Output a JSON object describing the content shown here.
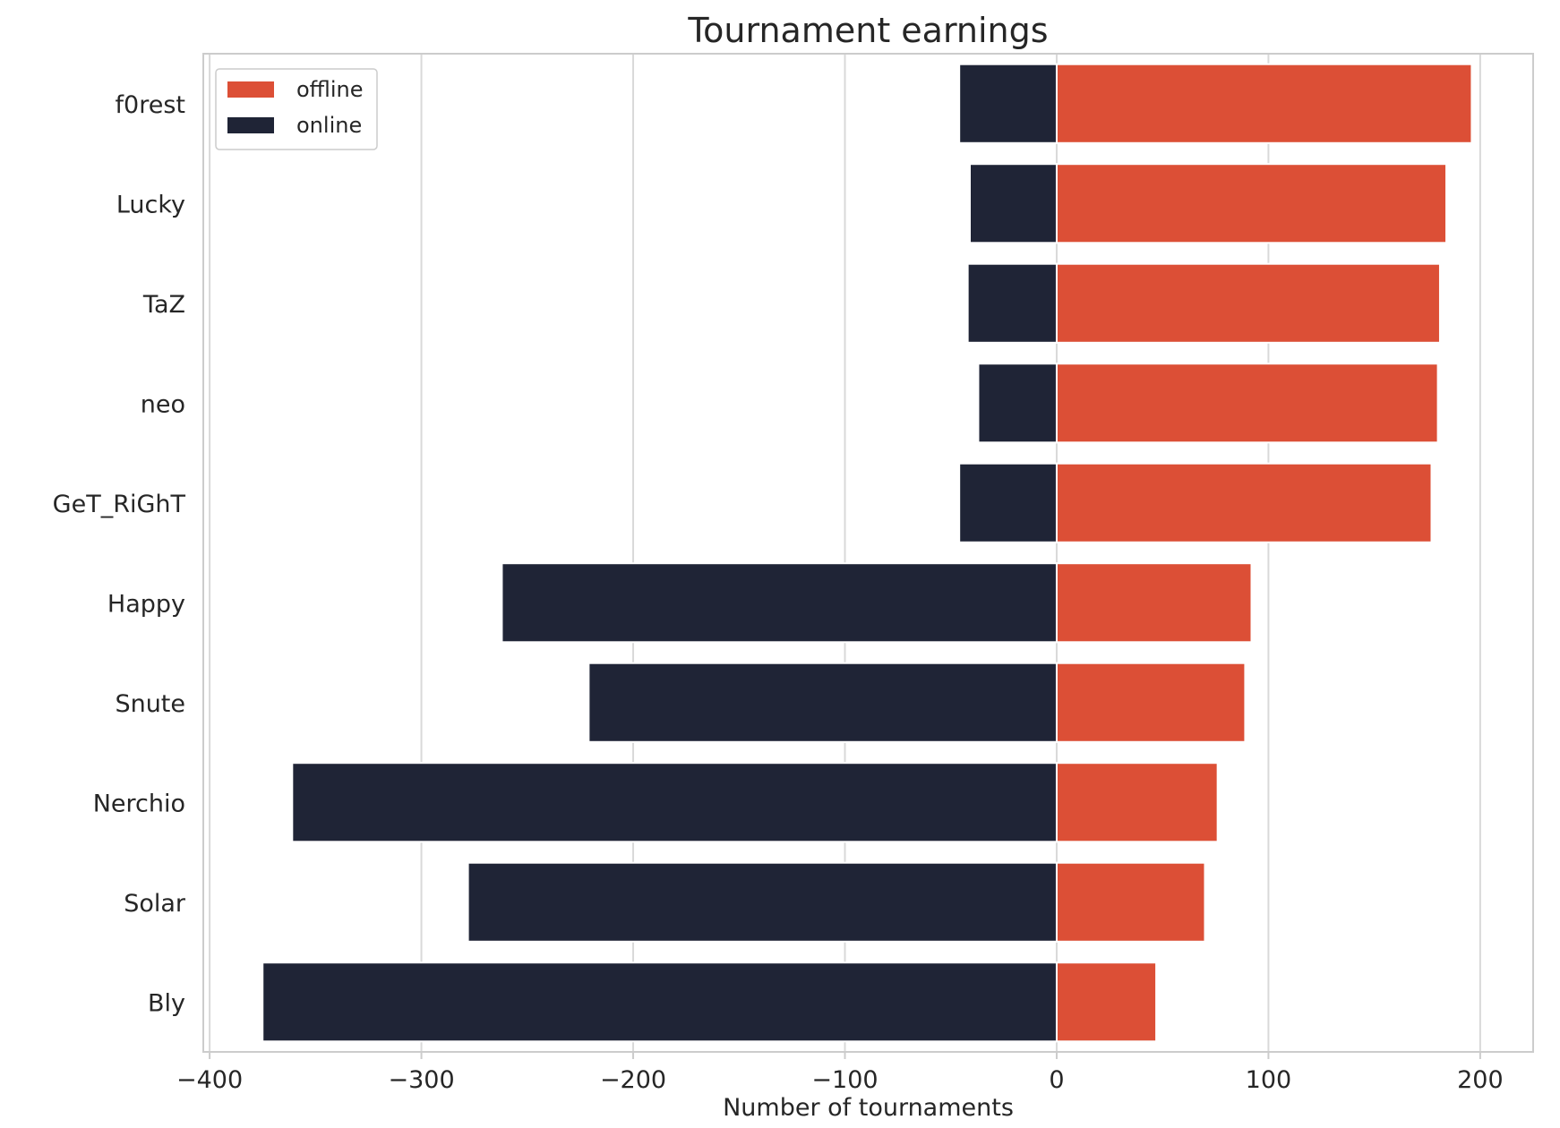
{
  "chart_data": {
    "type": "bar",
    "orientation": "horizontal",
    "stacked": "diverging",
    "title": "Tournament earnings",
    "xlabel": "Number of tournaments",
    "ylabel": "",
    "categories": [
      "f0rest",
      "Lucky",
      "TaZ",
      "neo",
      "GeT_RiGhT",
      "Happy",
      "Snute",
      "Nerchio",
      "Solar",
      "Bly"
    ],
    "series": [
      {
        "name": "offline",
        "color": "#dc4f36",
        "values": [
          196,
          184,
          181,
          180,
          177,
          92,
          89,
          76,
          70,
          47
        ]
      },
      {
        "name": "online",
        "color": "#1f2436",
        "values": [
          -46,
          -41,
          -42,
          -37,
          -46,
          -262,
          -221,
          -361,
          -278,
          -375
        ]
      }
    ],
    "xlim": [
      -403,
      225
    ],
    "xticks": [
      -400,
      -300,
      -200,
      -100,
      0,
      100,
      200
    ],
    "xtick_labels": [
      "−400",
      "−300",
      "−200",
      "−100",
      "0",
      "100",
      "200"
    ],
    "grid": "vertical",
    "legend_position": "top-left"
  }
}
